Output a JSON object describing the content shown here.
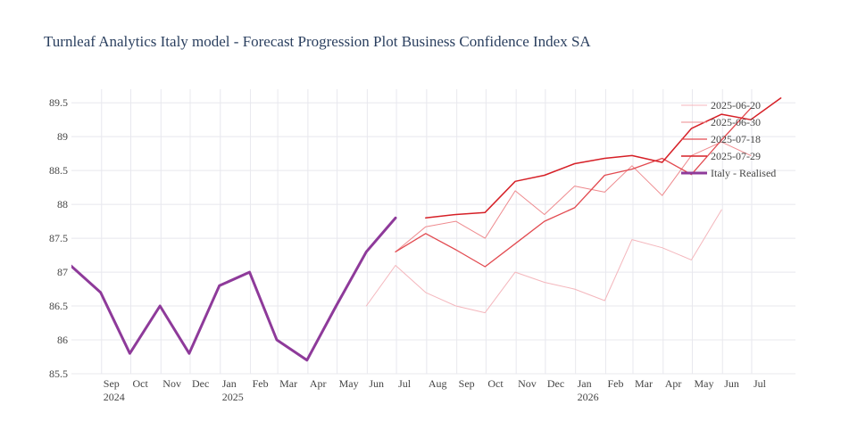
{
  "chart_data": {
    "type": "line",
    "title": "Turnleaf Analytics Italy model - Forecast Progression Plot Business Confidence Index SA",
    "xlabel": "",
    "ylabel": "",
    "ylim": [
      85.5,
      89.7
    ],
    "xlim": [
      "2024-08-01",
      "2026-08-15"
    ],
    "grid": true,
    "legend_placement": "top-right",
    "y_ticks": [
      85.5,
      86,
      86.5,
      87,
      87.5,
      88,
      88.5,
      89,
      89.5
    ],
    "y_tick_labels": [
      "85.5",
      "86",
      "86.5",
      "87",
      "87.5",
      "88",
      "88.5",
      "89",
      "89.5"
    ],
    "x_ticks": [
      {
        "date": "2024-09-01",
        "label": "Sep",
        "year": "2024"
      },
      {
        "date": "2024-10-01",
        "label": "Oct"
      },
      {
        "date": "2024-11-01",
        "label": "Nov"
      },
      {
        "date": "2024-12-01",
        "label": "Dec"
      },
      {
        "date": "2025-01-01",
        "label": "Jan",
        "year": "2025"
      },
      {
        "date": "2025-02-01",
        "label": "Feb"
      },
      {
        "date": "2025-03-01",
        "label": "Mar"
      },
      {
        "date": "2025-04-01",
        "label": "Apr"
      },
      {
        "date": "2025-05-01",
        "label": "May"
      },
      {
        "date": "2025-06-01",
        "label": "Jun"
      },
      {
        "date": "2025-07-01",
        "label": "Jul"
      },
      {
        "date": "2025-08-01",
        "label": "Aug"
      },
      {
        "date": "2025-09-01",
        "label": "Sep"
      },
      {
        "date": "2025-10-01",
        "label": "Oct"
      },
      {
        "date": "2025-11-01",
        "label": "Nov"
      },
      {
        "date": "2025-12-01",
        "label": "Dec"
      },
      {
        "date": "2026-01-01",
        "label": "Jan",
        "year": "2026"
      },
      {
        "date": "2026-02-01",
        "label": "Feb"
      },
      {
        "date": "2026-03-01",
        "label": "Mar"
      },
      {
        "date": "2026-04-01",
        "label": "Apr"
      },
      {
        "date": "2026-05-01",
        "label": "May"
      },
      {
        "date": "2026-06-01",
        "label": "Jun"
      },
      {
        "date": "2026-07-01",
        "label": "Jul"
      }
    ],
    "series": [
      {
        "name": "2025-06-20",
        "color": "#f4b6bc",
        "width": 1,
        "points": [
          [
            "2025-05-31",
            86.5
          ],
          [
            "2025-06-30",
            87.1
          ],
          [
            "2025-07-31",
            86.7
          ],
          [
            "2025-08-31",
            86.5
          ],
          [
            "2025-09-30",
            86.4
          ],
          [
            "2025-10-31",
            87.0
          ],
          [
            "2025-11-30",
            86.85
          ],
          [
            "2025-12-31",
            86.75
          ],
          [
            "2026-01-31",
            86.58
          ],
          [
            "2026-02-28",
            87.48
          ],
          [
            "2026-03-31",
            87.36
          ],
          [
            "2026-04-30",
            87.18
          ],
          [
            "2026-05-31",
            87.92
          ]
        ]
      },
      {
        "name": "2025-06-30",
        "color": "#ee8a8e",
        "width": 1,
        "points": [
          [
            "2025-06-30",
            87.3
          ],
          [
            "2025-07-31",
            87.67
          ],
          [
            "2025-08-31",
            87.75
          ],
          [
            "2025-09-30",
            87.5
          ],
          [
            "2025-10-31",
            88.2
          ],
          [
            "2025-11-30",
            87.85
          ],
          [
            "2025-12-31",
            88.27
          ],
          [
            "2026-01-31",
            88.18
          ],
          [
            "2026-02-28",
            88.57
          ],
          [
            "2026-03-31",
            88.13
          ],
          [
            "2026-04-30",
            88.72
          ],
          [
            "2026-05-31",
            88.92
          ],
          [
            "2026-06-30",
            88.72
          ]
        ]
      },
      {
        "name": "2025-07-18",
        "color": "#e24a50",
        "width": 1.3,
        "points": [
          [
            "2025-06-30",
            87.3
          ],
          [
            "2025-07-31",
            87.57
          ],
          [
            "2025-08-31",
            87.33
          ],
          [
            "2025-09-30",
            87.08
          ],
          [
            "2025-10-31",
            87.42
          ],
          [
            "2025-11-30",
            87.75
          ],
          [
            "2025-12-31",
            87.95
          ],
          [
            "2026-01-31",
            88.43
          ],
          [
            "2026-02-28",
            88.52
          ],
          [
            "2026-03-31",
            88.68
          ],
          [
            "2026-04-30",
            88.44
          ],
          [
            "2026-05-31",
            88.95
          ],
          [
            "2026-06-30",
            89.42
          ]
        ]
      },
      {
        "name": "2025-07-29",
        "color": "#d62027",
        "width": 1.5,
        "points": [
          [
            "2025-07-31",
            87.8
          ],
          [
            "2025-08-31",
            87.85
          ],
          [
            "2025-09-30",
            87.88
          ],
          [
            "2025-10-31",
            88.34
          ],
          [
            "2025-11-30",
            88.43
          ],
          [
            "2025-12-31",
            88.6
          ],
          [
            "2026-01-31",
            88.68
          ],
          [
            "2026-02-28",
            88.72
          ],
          [
            "2026-03-31",
            88.62
          ],
          [
            "2026-04-30",
            89.12
          ],
          [
            "2026-05-31",
            89.33
          ],
          [
            "2026-06-30",
            89.25
          ],
          [
            "2026-07-31",
            89.57
          ]
        ]
      },
      {
        "name": "Italy - Realised",
        "color": "#8e3a9a",
        "width": 3,
        "points": [
          [
            "2024-07-31",
            87.1
          ],
          [
            "2024-08-31",
            86.7
          ],
          [
            "2024-09-30",
            85.8
          ],
          [
            "2024-10-31",
            86.5
          ],
          [
            "2024-11-30",
            85.8
          ],
          [
            "2024-12-31",
            86.8
          ],
          [
            "2025-01-31",
            87.0
          ],
          [
            "2025-02-28",
            86.0
          ],
          [
            "2025-03-31",
            85.7
          ],
          [
            "2025-04-30",
            86.5
          ],
          [
            "2025-05-31",
            87.3
          ],
          [
            "2025-06-30",
            87.8
          ]
        ]
      }
    ]
  }
}
